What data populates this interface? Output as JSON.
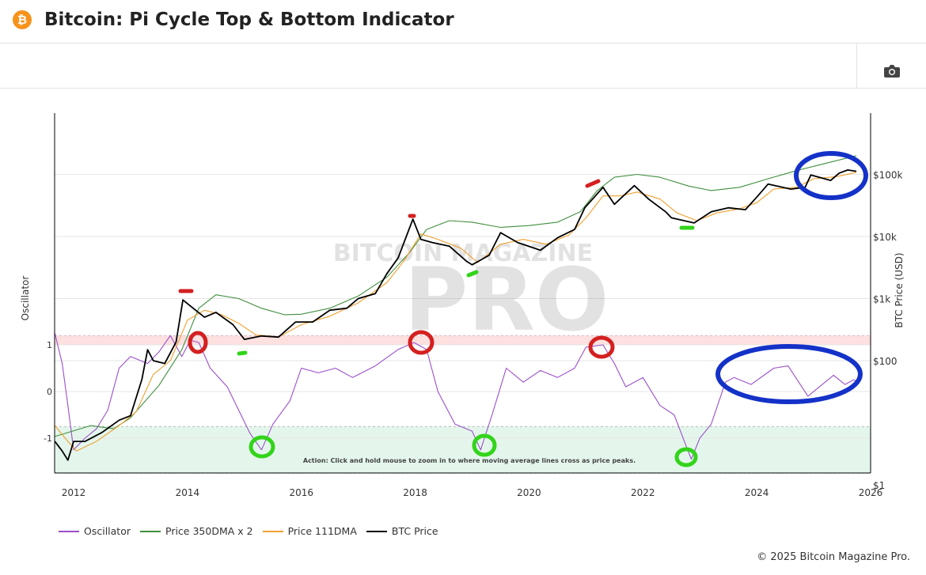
{
  "header": {
    "title": "Bitcoin: Pi Cycle Top & Bottom Indicator",
    "icon": "bitcoin-icon",
    "icon_glyph": "₿"
  },
  "toolbar": {
    "camera_icon": "camera-icon"
  },
  "footer": {
    "copyright": "© 2025 Bitcoin Magazine Pro."
  },
  "watermark": {
    "line1": "BITCOIN MAGAZINE",
    "line2": "PRO"
  },
  "colors": {
    "oscillator": "#9b4fc9",
    "dma350x2": "#3f8f3f",
    "dma111": "#f0a030",
    "price": "#000000",
    "top_band": "#fde0e0",
    "bottom_band": "#e4f6ec",
    "bitcoin": "#f7931a"
  },
  "chart_data": {
    "type": "line",
    "title": "Bitcoin: Pi Cycle Top & Bottom Indicator",
    "action_text": "Action: Click and hold mouse to zoom in to where moving average lines cross as price peaks.",
    "xlabel": "",
    "x_ticks": [
      "2012",
      "2014",
      "2016",
      "2018",
      "2020",
      "2022",
      "2024",
      "2026"
    ],
    "xlim": [
      2011.67,
      2026
    ],
    "y_left": {
      "label": "Oscillator",
      "ticks": [
        "1",
        "0",
        "-1"
      ],
      "tick_values": [
        1,
        0,
        -1
      ],
      "top_band": [
        1,
        1.2
      ],
      "bottom_band": [
        -1.75,
        -0.75
      ]
    },
    "y_right": {
      "label": "BTC Price (USD)",
      "scale": "log",
      "ticks": [
        "$1",
        "$100",
        "$1k",
        "$10k",
        "$100k"
      ],
      "tick_values": [
        1,
        100,
        1000,
        10000,
        100000
      ]
    },
    "legend": [
      "Oscillator",
      "Price 350DMA x 2",
      "Price 111DMA",
      "BTC Price"
    ],
    "legend_placement": "bottom-left",
    "series": [
      {
        "name": "BTC Price",
        "axis": "right",
        "points": [
          [
            2011.67,
            5
          ],
          [
            2011.8,
            3.5
          ],
          [
            2011.9,
            2.5
          ],
          [
            2012.0,
            5
          ],
          [
            2012.2,
            5
          ],
          [
            2012.5,
            7
          ],
          [
            2012.8,
            11
          ],
          [
            2013.0,
            13
          ],
          [
            2013.2,
            50
          ],
          [
            2013.3,
            150
          ],
          [
            2013.4,
            100
          ],
          [
            2013.6,
            90
          ],
          [
            2013.8,
            200
          ],
          [
            2013.92,
            950
          ],
          [
            2014.1,
            700
          ],
          [
            2014.3,
            500
          ],
          [
            2014.5,
            600
          ],
          [
            2014.8,
            380
          ],
          [
            2015.0,
            220
          ],
          [
            2015.3,
            250
          ],
          [
            2015.6,
            240
          ],
          [
            2015.9,
            420
          ],
          [
            2016.2,
            420
          ],
          [
            2016.5,
            650
          ],
          [
            2016.8,
            700
          ],
          [
            2017.0,
            1000
          ],
          [
            2017.3,
            1200
          ],
          [
            2017.5,
            2500
          ],
          [
            2017.7,
            4500
          ],
          [
            2017.96,
            19000
          ],
          [
            2018.1,
            9000
          ],
          [
            2018.3,
            8000
          ],
          [
            2018.6,
            7000
          ],
          [
            2018.9,
            4000
          ],
          [
            2019.0,
            3500
          ],
          [
            2019.3,
            5000
          ],
          [
            2019.5,
            11500
          ],
          [
            2019.8,
            8000
          ],
          [
            2020.2,
            6000
          ],
          [
            2020.5,
            9500
          ],
          [
            2020.8,
            13000
          ],
          [
            2020.98,
            29000
          ],
          [
            2021.3,
            62000
          ],
          [
            2021.5,
            33000
          ],
          [
            2021.85,
            66000
          ],
          [
            2022.1,
            40000
          ],
          [
            2022.4,
            25000
          ],
          [
            2022.5,
            20000
          ],
          [
            2022.9,
            16500
          ],
          [
            2023.2,
            25000
          ],
          [
            2023.5,
            29000
          ],
          [
            2023.8,
            27000
          ],
          [
            2024.0,
            43000
          ],
          [
            2024.2,
            70000
          ],
          [
            2024.6,
            58000
          ],
          [
            2024.85,
            62000
          ],
          [
            2024.95,
            98000
          ],
          [
            2025.3,
            80000
          ],
          [
            2025.45,
            105000
          ],
          [
            2025.6,
            118000
          ],
          [
            2025.75,
            112000
          ]
        ]
      },
      {
        "name": "Price 350DMA x 2",
        "axis": "right",
        "points": [
          [
            2011.67,
            6
          ],
          [
            2012.3,
            9
          ],
          [
            2012.7,
            8
          ],
          [
            2013.0,
            12
          ],
          [
            2013.5,
            40
          ],
          [
            2013.9,
            150
          ],
          [
            2014.2,
            700
          ],
          [
            2014.5,
            1150
          ],
          [
            2014.9,
            1000
          ],
          [
            2015.3,
            700
          ],
          [
            2015.7,
            550
          ],
          [
            2016.0,
            560
          ],
          [
            2016.5,
            700
          ],
          [
            2017.0,
            1100
          ],
          [
            2017.5,
            2200
          ],
          [
            2017.9,
            5500
          ],
          [
            2018.2,
            13000
          ],
          [
            2018.6,
            18000
          ],
          [
            2019.0,
            17000
          ],
          [
            2019.5,
            14000
          ],
          [
            2020.0,
            15000
          ],
          [
            2020.5,
            17000
          ],
          [
            2020.9,
            25000
          ],
          [
            2021.2,
            55000
          ],
          [
            2021.5,
            90000
          ],
          [
            2021.9,
            100000
          ],
          [
            2022.3,
            90000
          ],
          [
            2022.8,
            65000
          ],
          [
            2023.2,
            55000
          ],
          [
            2023.7,
            62000
          ],
          [
            2024.2,
            85000
          ],
          [
            2024.7,
            115000
          ],
          [
            2025.2,
            150000
          ],
          [
            2025.75,
            200000
          ]
        ]
      },
      {
        "name": "Price 111DMA",
        "axis": "right",
        "points": [
          [
            2011.67,
            9
          ],
          [
            2011.9,
            5
          ],
          [
            2012.05,
            3.5
          ],
          [
            2012.4,
            5
          ],
          [
            2012.8,
            9
          ],
          [
            2013.1,
            15
          ],
          [
            2013.4,
            60
          ],
          [
            2013.7,
            100
          ],
          [
            2014.0,
            450
          ],
          [
            2014.3,
            650
          ],
          [
            2014.6,
            550
          ],
          [
            2014.9,
            400
          ],
          [
            2015.2,
            260
          ],
          [
            2015.6,
            240
          ],
          [
            2016.0,
            380
          ],
          [
            2016.5,
            520
          ],
          [
            2017.0,
            850
          ],
          [
            2017.5,
            1800
          ],
          [
            2017.8,
            4000
          ],
          [
            2018.1,
            11000
          ],
          [
            2018.4,
            9000
          ],
          [
            2018.8,
            6500
          ],
          [
            2019.1,
            3800
          ],
          [
            2019.5,
            7500
          ],
          [
            2019.9,
            9000
          ],
          [
            2020.3,
            7500
          ],
          [
            2020.7,
            10500
          ],
          [
            2021.0,
            20000
          ],
          [
            2021.3,
            45000
          ],
          [
            2021.6,
            45000
          ],
          [
            2021.9,
            52000
          ],
          [
            2022.3,
            40000
          ],
          [
            2022.6,
            24000
          ],
          [
            2022.95,
            18000
          ],
          [
            2023.3,
            24000
          ],
          [
            2023.7,
            28000
          ],
          [
            2024.0,
            35000
          ],
          [
            2024.3,
            58000
          ],
          [
            2024.7,
            62000
          ],
          [
            2025.0,
            85000
          ],
          [
            2025.4,
            92000
          ],
          [
            2025.75,
            108000
          ]
        ]
      },
      {
        "name": "Oscillator",
        "axis": "left",
        "points": [
          [
            2011.67,
            1.25
          ],
          [
            2011.8,
            0.6
          ],
          [
            2011.9,
            -0.3
          ],
          [
            2012.0,
            -1.25
          ],
          [
            2012.2,
            -1.0
          ],
          [
            2012.4,
            -0.8
          ],
          [
            2012.6,
            -0.4
          ],
          [
            2012.8,
            0.5
          ],
          [
            2013.0,
            0.75
          ],
          [
            2013.3,
            0.6
          ],
          [
            2013.5,
            0.85
          ],
          [
            2013.7,
            1.2
          ],
          [
            2013.9,
            0.75
          ],
          [
            2014.05,
            1.1
          ],
          [
            2014.2,
            1.05
          ],
          [
            2014.4,
            0.5
          ],
          [
            2014.7,
            0.1
          ],
          [
            2014.9,
            -0.4
          ],
          [
            2015.1,
            -0.9
          ],
          [
            2015.3,
            -1.25
          ],
          [
            2015.5,
            -0.7
          ],
          [
            2015.8,
            -0.2
          ],
          [
            2016.0,
            0.5
          ],
          [
            2016.3,
            0.4
          ],
          [
            2016.6,
            0.5
          ],
          [
            2016.9,
            0.3
          ],
          [
            2017.3,
            0.55
          ],
          [
            2017.7,
            0.9
          ],
          [
            2017.98,
            1.05
          ],
          [
            2018.2,
            0.9
          ],
          [
            2018.4,
            0.0
          ],
          [
            2018.7,
            -0.7
          ],
          [
            2019.0,
            -0.85
          ],
          [
            2019.15,
            -1.25
          ],
          [
            2019.35,
            -0.5
          ],
          [
            2019.6,
            0.5
          ],
          [
            2019.9,
            0.2
          ],
          [
            2020.2,
            0.45
          ],
          [
            2020.5,
            0.3
          ],
          [
            2020.8,
            0.5
          ],
          [
            2021.0,
            0.95
          ],
          [
            2021.3,
            1.0
          ],
          [
            2021.5,
            0.6
          ],
          [
            2021.7,
            0.1
          ],
          [
            2022.0,
            0.3
          ],
          [
            2022.3,
            -0.3
          ],
          [
            2022.55,
            -0.5
          ],
          [
            2022.85,
            -1.45
          ],
          [
            2023.0,
            -1.0
          ],
          [
            2023.2,
            -0.7
          ],
          [
            2023.45,
            0.2
          ],
          [
            2023.6,
            0.3
          ],
          [
            2023.9,
            0.15
          ],
          [
            2024.3,
            0.5
          ],
          [
            2024.55,
            0.55
          ],
          [
            2024.9,
            -0.1
          ],
          [
            2025.1,
            0.1
          ],
          [
            2025.35,
            0.35
          ],
          [
            2025.55,
            0.15
          ],
          [
            2025.7,
            0.25
          ],
          [
            2025.8,
            0.2
          ]
        ]
      }
    ]
  }
}
